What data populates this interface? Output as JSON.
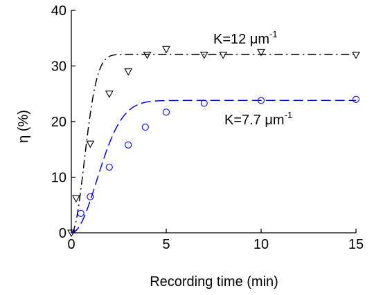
{
  "chart_data": {
    "type": "scatter",
    "xlabel": "Recording time (min)",
    "ylabel": "η (%)",
    "xlim": [
      0,
      15
    ],
    "ylim": [
      0,
      40
    ],
    "xticks": [
      0,
      5,
      10,
      15
    ],
    "yticks": [
      0,
      10,
      20,
      30,
      40
    ],
    "grid": false,
    "legend": "none",
    "series": [
      {
        "label": "K=12 μm",
        "label_sup": "-1",
        "color": "#000000",
        "marker": "triangle-down",
        "line_style": "dash-dot",
        "points": [
          {
            "x": 0,
            "y": 0
          },
          {
            "x": 0.25,
            "y": 6.2
          },
          {
            "x": 1,
            "y": 16
          },
          {
            "x": 2,
            "y": 25
          },
          {
            "x": 3,
            "y": 29
          },
          {
            "x": 4,
            "y": 32
          },
          {
            "x": 5,
            "y": 33
          },
          {
            "x": 7,
            "y": 32
          },
          {
            "x": 8,
            "y": 32
          },
          {
            "x": 10,
            "y": 32.5
          },
          {
            "x": 15,
            "y": 32
          }
        ],
        "fit_plateau": 32.1,
        "fit_rate": 1.05,
        "fit_power": 2
      },
      {
        "label": "K=7.7 μm",
        "label_sup": "-1",
        "color": "#0000ff",
        "marker": "circle",
        "line_style": "dashed",
        "points": [
          {
            "x": 0.5,
            "y": 3.5
          },
          {
            "x": 1,
            "y": 6.5
          },
          {
            "x": 2,
            "y": 11.8
          },
          {
            "x": 3,
            "y": 15.8
          },
          {
            "x": 3.9,
            "y": 19
          },
          {
            "x": 5,
            "y": 21.7
          },
          {
            "x": 7,
            "y": 23.3
          },
          {
            "x": 10,
            "y": 23.8
          },
          {
            "x": 15,
            "y": 24
          }
        ],
        "fit_plateau": 23.8,
        "fit_rate": 0.53,
        "fit_power": 2
      }
    ]
  }
}
